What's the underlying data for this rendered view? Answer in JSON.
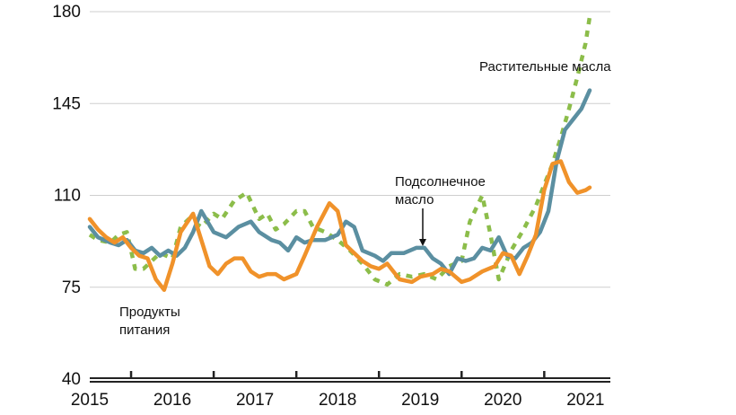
{
  "chart_data": {
    "type": "line",
    "title": "",
    "xlabel": "",
    "ylabel": "",
    "ylim": [
      40,
      180
    ],
    "y_ticks": [
      "40",
      "75",
      "110",
      "145",
      "180"
    ],
    "x_ticks": [
      "2015",
      "2016",
      "2017",
      "2018",
      "2019",
      "2020",
      "2021"
    ],
    "grid": "horizontal",
    "annotations": {
      "food": "Продукты питания",
      "sunflower": "Подсолнечное масло",
      "vegoil": "Растительные масла"
    },
    "series": [
      {
        "name": "Растительные масла",
        "color": "#8cbd4a",
        "style": "dashed",
        "x": [
          2015.0,
          2015.1,
          2015.25,
          2015.35,
          2015.45,
          2015.55,
          2015.65,
          2015.85,
          2016.0,
          2016.1,
          2016.2,
          2016.35,
          2016.5,
          2016.6,
          2016.75,
          2016.9,
          2017.05,
          2017.15,
          2017.25,
          2017.35,
          2017.5,
          2017.6,
          2017.7,
          2017.85,
          2018.0,
          2018.15,
          2018.3,
          2018.45,
          2018.6,
          2018.75,
          2018.9,
          2019.05,
          2019.2,
          2019.35,
          2019.5,
          2019.6,
          2019.75,
          2019.85,
          2019.95,
          2020.1,
          2020.25,
          2020.4,
          2020.5,
          2020.6,
          2020.7,
          2020.8,
          2020.9,
          2021.0,
          2021.05
        ],
        "values": [
          95,
          93,
          92,
          95,
          96,
          82,
          82,
          88,
          86,
          98,
          101,
          98,
          103,
          101,
          108,
          111,
          101,
          103,
          97,
          99,
          104,
          104,
          98,
          96,
          93,
          89,
          84,
          78,
          76,
          80,
          79,
          80,
          78,
          83,
          85,
          100,
          110,
          95,
          78,
          89,
          97,
          106,
          114,
          122,
          132,
          143,
          155,
          168,
          178
        ]
      },
      {
        "name": "Подсолнечное масло",
        "color": "#5b8fa1",
        "style": "solid",
        "x": [
          2015.0,
          2015.1,
          2015.25,
          2015.35,
          2015.45,
          2015.55,
          2015.65,
          2015.75,
          2015.85,
          2015.95,
          2016.05,
          2016.15,
          2016.25,
          2016.35,
          2016.5,
          2016.65,
          2016.8,
          2016.95,
          2017.05,
          2017.2,
          2017.3,
          2017.4,
          2017.5,
          2017.6,
          2017.7,
          2017.85,
          2018.0,
          2018.1,
          2018.2,
          2018.3,
          2018.45,
          2018.55,
          2018.65,
          2018.8,
          2018.95,
          2019.05,
          2019.15,
          2019.25,
          2019.35,
          2019.45,
          2019.55,
          2019.65,
          2019.75,
          2019.85,
          2019.95,
          2020.05,
          2020.15,
          2020.25,
          2020.35,
          2020.45,
          2020.55,
          2020.65,
          2020.75,
          2020.85,
          2020.95,
          2021.05
        ],
        "values": [
          98,
          94,
          92,
          91,
          93,
          89,
          88,
          90,
          87,
          89,
          87,
          90,
          96,
          104,
          96,
          94,
          98,
          100,
          96,
          93,
          92,
          89,
          94,
          92,
          93,
          93,
          95,
          100,
          98,
          89,
          87,
          85,
          88,
          88,
          90,
          90,
          86,
          84,
          80,
          86,
          85,
          86,
          90,
          89,
          94,
          87,
          86,
          90,
          92,
          96,
          104,
          123,
          135,
          139,
          143,
          150
        ]
      },
      {
        "name": "Продукты питания",
        "color": "#f0922a",
        "style": "solid",
        "x": [
          2015.0,
          2015.1,
          2015.2,
          2015.3,
          2015.4,
          2015.5,
          2015.6,
          2015.7,
          2015.8,
          2015.9,
          2016.0,
          2016.1,
          2016.25,
          2016.35,
          2016.45,
          2016.55,
          2016.65,
          2016.75,
          2016.85,
          2016.95,
          2017.05,
          2017.15,
          2017.25,
          2017.35,
          2017.5,
          2017.6,
          2017.75,
          2017.9,
          2018.0,
          2018.1,
          2018.2,
          2018.3,
          2018.4,
          2018.5,
          2018.6,
          2018.75,
          2018.9,
          2019.0,
          2019.15,
          2019.25,
          2019.35,
          2019.5,
          2019.6,
          2019.75,
          2019.9,
          2020.0,
          2020.1,
          2020.2,
          2020.3,
          2020.4,
          2020.5,
          2020.6,
          2020.7,
          2020.8,
          2020.9,
          2021.0,
          2021.05
        ],
        "values": [
          101,
          97,
          94,
          92,
          94,
          90,
          87,
          86,
          78,
          74,
          84,
          96,
          103,
          93,
          83,
          80,
          84,
          86,
          86,
          81,
          79,
          80,
          80,
          78,
          80,
          87,
          98,
          107,
          104,
          91,
          88,
          85,
          83,
          82,
          84,
          78,
          77,
          79,
          80,
          82,
          81,
          77,
          78,
          81,
          83,
          88,
          87,
          80,
          87,
          95,
          112,
          122,
          123,
          115,
          111,
          112,
          113
        ]
      }
    ]
  }
}
